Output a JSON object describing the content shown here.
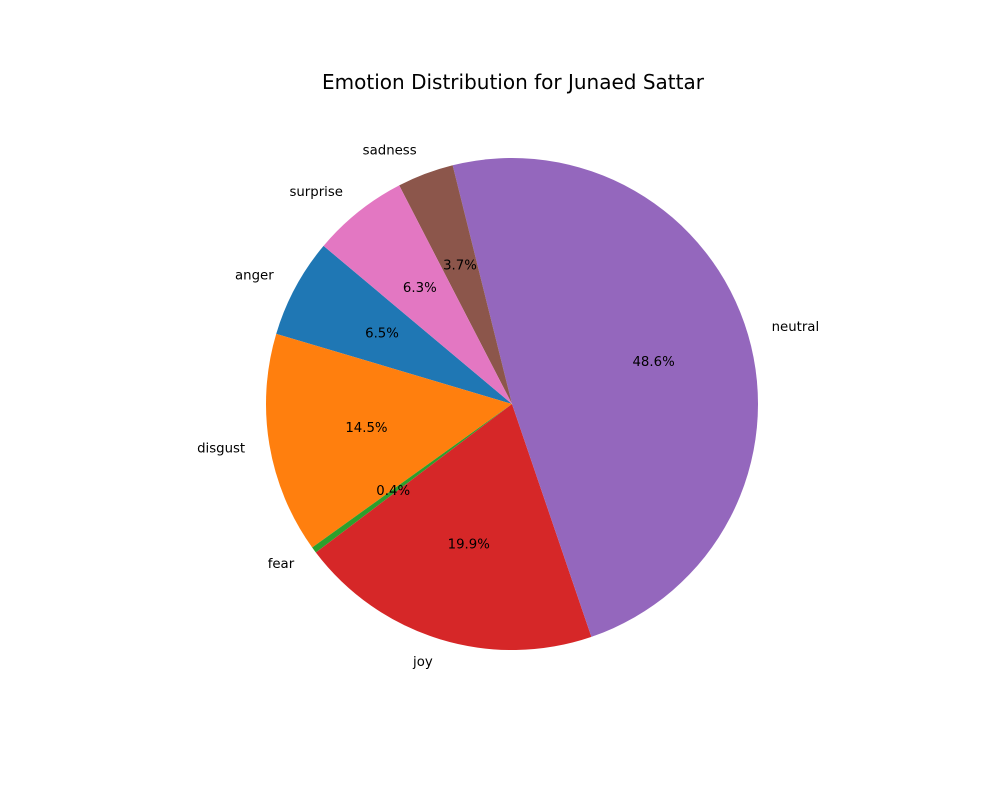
{
  "chart_data": {
    "type": "pie",
    "title": "Emotion Distribution for Junaed Sattar",
    "slices": [
      {
        "label": "anger",
        "value": 6.5,
        "pct_label": "6.5%",
        "color": "#1f77b4"
      },
      {
        "label": "disgust",
        "value": 14.5,
        "pct_label": "14.5%",
        "color": "#ff7f0e"
      },
      {
        "label": "fear",
        "value": 0.4,
        "pct_label": "0.4%",
        "color": "#2ca02c"
      },
      {
        "label": "joy",
        "value": 19.9,
        "pct_label": "19.9%",
        "color": "#d62728"
      },
      {
        "label": "neutral",
        "value": 48.6,
        "pct_label": "48.6%",
        "color": "#9467bd"
      },
      {
        "label": "sadness",
        "value": 3.7,
        "pct_label": "3.7%",
        "color": "#8c564b"
      },
      {
        "label": "surprise",
        "value": 6.3,
        "pct_label": "6.3%",
        "color": "#e377c2"
      }
    ],
    "start_angle_deg": 140,
    "direction": "counterclockwise"
  }
}
